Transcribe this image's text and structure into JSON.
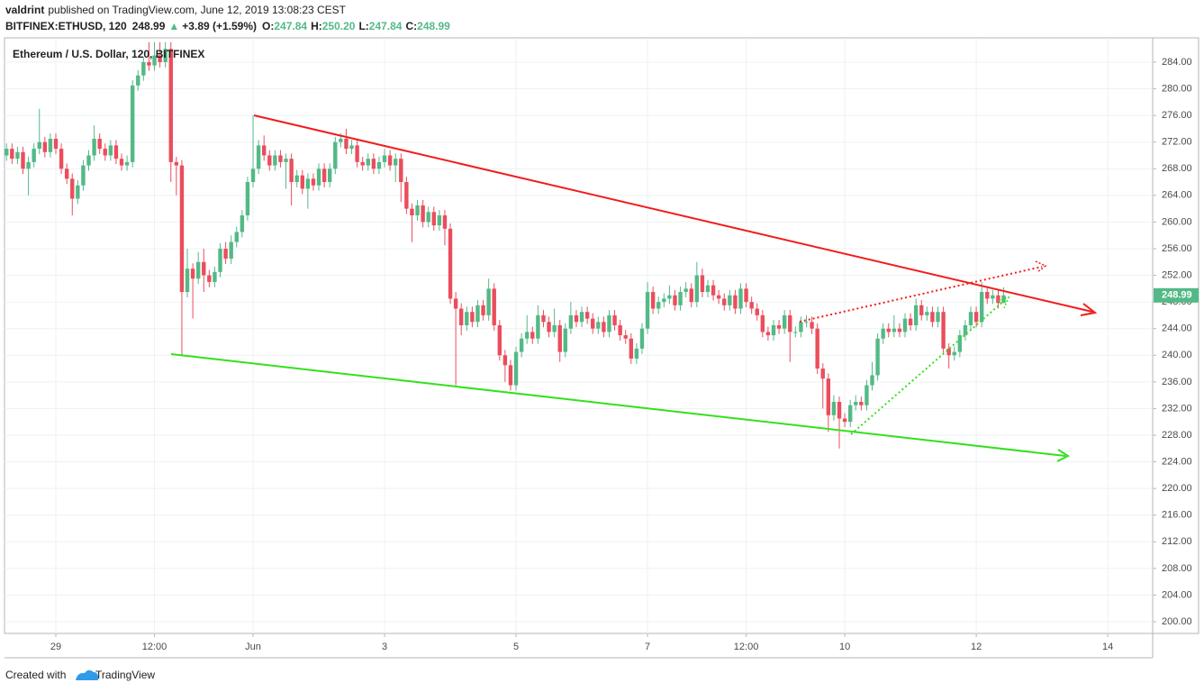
{
  "header": {
    "author": "valdrint",
    "published": "published on TradingView.com, June 12, 2019 13:08:23 CEST",
    "symbol": "BITFINEX:ETHUSD, 120",
    "price": "248.99",
    "arrow": "▲",
    "change": "+3.89 (+1.59%)",
    "ohlc": [
      {
        "label": "O:",
        "value": "247.84"
      },
      {
        "label": "H:",
        "value": "250.20"
      },
      {
        "label": "L:",
        "value": "247.84"
      },
      {
        "label": "C:",
        "value": "248.99"
      }
    ]
  },
  "chart_data": {
    "type": "candlestick",
    "title": "Ethereum / U.S. Dollar, 120, BITFINEX",
    "up_color": "#53b987",
    "down_color": "#eb4d5c",
    "grid": true,
    "xlim": [
      -9.37,
      200.2
    ],
    "ylim": [
      198.24,
      287.65
    ],
    "xticks": [
      {
        "value": 0,
        "label": "29"
      },
      {
        "value": 18,
        "label": "12:00"
      },
      {
        "value": 36,
        "label": "Jun"
      },
      {
        "value": 60,
        "label": "3"
      },
      {
        "value": 84,
        "label": "5"
      },
      {
        "value": 108,
        "label": "7"
      },
      {
        "value": 126,
        "label": "12:00"
      },
      {
        "value": 144,
        "label": "10"
      },
      {
        "value": 168,
        "label": "12"
      },
      {
        "value": 192,
        "label": "14"
      }
    ],
    "yticks": [
      {
        "value": 200,
        "label": "200.00"
      },
      {
        "value": 204,
        "label": "204.00"
      },
      {
        "value": 208,
        "label": "208.00"
      },
      {
        "value": 212,
        "label": "212.00"
      },
      {
        "value": 216,
        "label": "216.00"
      },
      {
        "value": 220,
        "label": "220.00"
      },
      {
        "value": 224,
        "label": "224.00"
      },
      {
        "value": 228,
        "label": "228.00"
      },
      {
        "value": 232,
        "label": "232.00"
      },
      {
        "value": 236,
        "label": "236.00"
      },
      {
        "value": 240,
        "label": "240.00"
      },
      {
        "value": 244,
        "label": "244.00"
      },
      {
        "value": 248,
        "label": "248.00"
      },
      {
        "value": 252,
        "label": "252.00"
      },
      {
        "value": 256,
        "label": "256.00"
      },
      {
        "value": 260,
        "label": "260.00"
      },
      {
        "value": 264,
        "label": "264.00"
      },
      {
        "value": 268,
        "label": "268.00"
      },
      {
        "value": 272,
        "label": "272.00"
      },
      {
        "value": 276,
        "label": "276.00"
      },
      {
        "value": 280,
        "label": "280.00"
      },
      {
        "value": 284,
        "label": "284.00"
      }
    ],
    "last_price": 248.99,
    "candles": [
      [
        -9,
        270,
        271.8,
        269.2,
        271
      ],
      [
        -8,
        271,
        271.8,
        268.7,
        269.5
      ],
      [
        -7,
        269.5,
        271.3,
        268.7,
        270.5
      ],
      [
        -6,
        270.5,
        271.3,
        267.2,
        268
      ],
      [
        -5,
        268,
        269.8,
        264,
        269
      ],
      [
        -4,
        269,
        271.8,
        268.2,
        271
      ],
      [
        -3,
        271,
        277,
        270.2,
        272
      ],
      [
        -2,
        272,
        272.8,
        269.7,
        270.5
      ],
      [
        -1,
        270.5,
        273.3,
        269.7,
        272.5
      ],
      [
        0,
        272.5,
        273.3,
        270.2,
        271
      ],
      [
        1,
        271,
        271.8,
        267.2,
        268
      ],
      [
        2,
        268,
        268.8,
        265.7,
        266.5
      ],
      [
        3,
        266.5,
        267.3,
        261,
        263.5
      ],
      [
        4,
        263.5,
        266.3,
        262.7,
        265.5
      ],
      [
        5,
        265.5,
        269.3,
        264.7,
        268.5
      ],
      [
        6,
        268.5,
        270.8,
        267.7,
        270
      ],
      [
        7,
        270,
        274.5,
        269.2,
        272.5
      ],
      [
        8,
        272.5,
        273.3,
        270.2,
        271
      ],
      [
        9,
        271,
        271.8,
        269.2,
        270
      ],
      [
        10,
        270,
        272.3,
        269.2,
        271.5
      ],
      [
        11,
        271.5,
        272.3,
        268.7,
        269.5
      ],
      [
        12,
        269.5,
        270.3,
        267.7,
        268.5
      ],
      [
        13,
        268.5,
        270,
        267.7,
        269
      ],
      [
        14,
        269,
        281.3,
        268.2,
        280.5
      ],
      [
        15,
        280.5,
        282.8,
        279.7,
        282
      ],
      [
        16,
        282,
        284.8,
        281.2,
        284
      ],
      [
        17,
        284,
        287,
        282.7,
        283.5
      ],
      [
        18,
        283.5,
        287,
        282.7,
        285
      ],
      [
        19,
        285,
        287,
        283.2,
        284
      ],
      [
        20,
        284,
        287,
        283.2,
        286
      ],
      [
        21,
        286,
        287,
        266,
        269
      ],
      [
        22,
        269,
        269.8,
        264,
        268.5
      ],
      [
        23,
        268.5,
        269.3,
        240,
        249.5
      ],
      [
        24,
        249.5,
        256,
        248.7,
        253
      ],
      [
        25,
        253,
        253.8,
        245.5,
        251.5
      ],
      [
        26,
        251.5,
        255.5,
        250.7,
        254
      ],
      [
        27,
        254,
        256,
        249.5,
        252
      ],
      [
        28,
        252,
        252.8,
        250.2,
        251
      ],
      [
        29,
        251,
        253.3,
        250.2,
        252.5
      ],
      [
        30,
        252.5,
        256.8,
        251.7,
        256
      ],
      [
        31,
        256,
        257,
        253.7,
        254.5
      ],
      [
        32,
        254.5,
        258,
        253.7,
        257
      ],
      [
        33,
        257,
        259.3,
        256.2,
        258.5
      ],
      [
        34,
        258.5,
        261.8,
        257.7,
        261
      ],
      [
        35,
        261,
        266.8,
        260.2,
        266
      ],
      [
        36,
        266,
        276,
        265.2,
        268
      ],
      [
        37,
        268,
        272.3,
        267.2,
        271.5
      ],
      [
        38,
        271.5,
        273,
        269.2,
        270
      ],
      [
        39,
        270,
        270.8,
        267.7,
        268.5
      ],
      [
        40,
        268.5,
        270.8,
        267.7,
        270
      ],
      [
        41,
        270,
        270.8,
        268.2,
        269
      ],
      [
        42,
        269,
        270.3,
        265,
        269.5
      ],
      [
        43,
        269.5,
        270.3,
        262.5,
        266
      ],
      [
        44,
        266,
        267.8,
        265.2,
        267
      ],
      [
        45,
        267,
        267.8,
        264.2,
        265
      ],
      [
        46,
        265,
        267.3,
        262,
        266.5
      ],
      [
        47,
        266.5,
        267.3,
        264.7,
        265.5
      ],
      [
        48,
        265.5,
        268.8,
        264.7,
        268
      ],
      [
        49,
        268,
        268.8,
        265.2,
        266
      ],
      [
        50,
        266,
        268.8,
        265.2,
        268
      ],
      [
        51,
        268,
        272.8,
        267.2,
        272
      ],
      [
        52,
        272,
        273.3,
        271.2,
        272.5
      ],
      [
        53,
        272.5,
        274,
        270.2,
        271
      ],
      [
        54,
        271,
        272.3,
        270.2,
        271.5
      ],
      [
        55,
        271.5,
        272.3,
        268.2,
        269
      ],
      [
        56,
        269,
        269.8,
        267.7,
        268.5
      ],
      [
        57,
        268.5,
        270.3,
        267.7,
        269.5
      ],
      [
        58,
        269.5,
        270.3,
        267.2,
        268
      ],
      [
        59,
        268,
        269.8,
        267.2,
        269
      ],
      [
        60,
        269,
        271,
        268.2,
        270
      ],
      [
        61,
        270,
        270.8,
        267.7,
        268.5
      ],
      [
        62,
        268.5,
        270.3,
        266,
        269.5
      ],
      [
        63,
        269.5,
        270.3,
        263,
        266
      ],
      [
        64,
        266,
        266.8,
        261.2,
        262
      ],
      [
        65,
        262,
        262.8,
        257,
        261
      ],
      [
        66,
        261,
        263.3,
        260.2,
        262.5
      ],
      [
        67,
        262.5,
        263.3,
        259.2,
        260
      ],
      [
        68,
        260,
        262.3,
        259.2,
        261.5
      ],
      [
        69,
        261.5,
        262.3,
        258.7,
        259.5
      ],
      [
        70,
        259.5,
        261.8,
        258.7,
        261
      ],
      [
        71,
        261,
        261.8,
        256.5,
        259
      ],
      [
        72,
        259,
        259.8,
        247.7,
        248.5
      ],
      [
        73,
        248.5,
        249.5,
        235.5,
        247
      ],
      [
        74,
        247,
        247.8,
        243,
        244.5
      ],
      [
        75,
        244.5,
        247.3,
        243.7,
        246.5
      ],
      [
        76,
        246.5,
        247.3,
        244.2,
        245
      ],
      [
        77,
        245,
        248.3,
        244.2,
        247.5
      ],
      [
        78,
        247.5,
        248.3,
        245.2,
        246
      ],
      [
        79,
        246,
        251.5,
        245.2,
        250
      ],
      [
        80,
        250,
        250.8,
        243.7,
        244.5
      ],
      [
        81,
        244.5,
        245.3,
        239.2,
        240
      ],
      [
        82,
        240,
        240.8,
        236,
        238.5
      ],
      [
        83,
        238.5,
        239.3,
        234.7,
        235.5
      ],
      [
        84,
        235.5,
        241.3,
        234.7,
        240.5
      ],
      [
        85,
        240.5,
        243.3,
        239.7,
        242.5
      ],
      [
        86,
        242.5,
        246,
        241.7,
        243.5
      ],
      [
        87,
        243.5,
        244.3,
        241.7,
        242.5
      ],
      [
        88,
        242.5,
        247.5,
        241.7,
        246
      ],
      [
        89,
        246,
        246.8,
        244.2,
        245
      ],
      [
        90,
        245,
        245.8,
        242.7,
        243.5
      ],
      [
        91,
        243.5,
        247,
        242.7,
        244.5
      ],
      [
        92,
        244.5,
        245.3,
        239,
        240.5
      ],
      [
        93,
        240.5,
        244.8,
        239.7,
        244
      ],
      [
        94,
        244,
        248,
        243.2,
        246
      ],
      [
        95,
        246,
        246.8,
        244.2,
        245
      ],
      [
        96,
        245,
        247.3,
        244.2,
        246.5
      ],
      [
        97,
        246.5,
        247.3,
        244.7,
        245.5
      ],
      [
        98,
        245.5,
        246.3,
        243.2,
        244
      ],
      [
        99,
        244,
        245.8,
        243.2,
        245
      ],
      [
        100,
        245,
        245.8,
        242.7,
        243.5
      ],
      [
        101,
        243.5,
        246.8,
        242.7,
        246
      ],
      [
        102,
        246,
        246.8,
        243.7,
        244.5
      ],
      [
        103,
        244.5,
        245.3,
        242.2,
        243
      ],
      [
        104,
        243,
        243.8,
        241.7,
        242.5
      ],
      [
        105,
        242.5,
        243.3,
        238.7,
        239.5
      ],
      [
        106,
        239.5,
        241.8,
        238.7,
        241
      ],
      [
        107,
        241,
        244.8,
        240.2,
        244
      ],
      [
        108,
        244,
        251,
        243.2,
        249.5
      ],
      [
        109,
        249.5,
        250.3,
        246.2,
        247
      ],
      [
        110,
        247,
        248.8,
        246.2,
        248
      ],
      [
        111,
        248,
        249.3,
        247.2,
        248.5
      ],
      [
        112,
        248.5,
        250.5,
        247.7,
        249
      ],
      [
        113,
        249,
        249.8,
        246.7,
        247.5
      ],
      [
        114,
        247.5,
        250.3,
        246.7,
        249.5
      ],
      [
        115,
        249.5,
        251,
        248.7,
        250
      ],
      [
        116,
        250,
        250.8,
        247.2,
        248
      ],
      [
        117,
        248,
        254,
        247.2,
        252
      ],
      [
        118,
        252,
        253,
        248.7,
        249.5
      ],
      [
        119,
        249.5,
        251.3,
        248.7,
        250.5
      ],
      [
        120,
        250.5,
        251.3,
        248.2,
        249
      ],
      [
        121,
        249,
        249.8,
        247.7,
        248.5
      ],
      [
        122,
        248.5,
        249.3,
        246.7,
        247.5
      ],
      [
        123,
        247.5,
        249.8,
        246.7,
        249
      ],
      [
        124,
        249,
        249.8,
        246.2,
        247
      ],
      [
        125,
        247,
        250.8,
        246.2,
        250
      ],
      [
        126,
        250,
        250.8,
        247.2,
        248
      ],
      [
        127,
        248,
        248.8,
        246.2,
        247
      ],
      [
        128,
        247,
        247.8,
        245.2,
        246
      ],
      [
        129,
        246,
        246.8,
        242.7,
        243.5
      ],
      [
        130,
        243.5,
        244.3,
        242.2,
        243
      ],
      [
        131,
        243,
        245.3,
        242.2,
        244.5
      ],
      [
        132,
        244.5,
        245.3,
        243.2,
        244
      ],
      [
        133,
        244,
        246.8,
        243.2,
        246
      ],
      [
        134,
        246,
        246.8,
        239,
        243.5
      ],
      [
        135,
        243.5,
        244.3,
        242.7,
        243.5
      ],
      [
        136,
        243.5,
        245.8,
        242.7,
        245
      ],
      [
        137,
        245,
        246,
        244.2,
        245
      ],
      [
        138,
        245,
        245.8,
        243.2,
        244
      ],
      [
        139,
        244,
        244.8,
        237.2,
        238
      ],
      [
        140,
        238,
        238.8,
        232,
        236.5
      ],
      [
        141,
        236.5,
        237.3,
        228.5,
        231
      ],
      [
        142,
        231,
        234,
        230.2,
        233
      ],
      [
        143,
        233,
        233.8,
        226,
        230.5
      ],
      [
        144,
        230.5,
        231.3,
        229.2,
        230
      ],
      [
        145,
        230,
        233.3,
        229.2,
        232.5
      ],
      [
        146,
        232.5,
        234,
        231.7,
        233
      ],
      [
        147,
        233,
        233.8,
        231.7,
        232.5
      ],
      [
        148,
        232.5,
        236.3,
        231.7,
        235.5
      ],
      [
        149,
        235.5,
        239,
        234.7,
        237
      ],
      [
        150,
        237,
        243.3,
        236.2,
        242.5
      ],
      [
        151,
        242.5,
        244.8,
        241.7,
        244
      ],
      [
        152,
        244,
        244.8,
        242.7,
        243.5
      ],
      [
        153,
        243.5,
        246,
        242.7,
        244
      ],
      [
        154,
        244,
        244.8,
        242.7,
        243.5
      ],
      [
        155,
        243.5,
        246.3,
        242.7,
        245.5
      ],
      [
        156,
        245.5,
        246.3,
        243.7,
        244.5
      ],
      [
        157,
        244.5,
        248.5,
        243.7,
        247.5
      ],
      [
        158,
        247.5,
        248.3,
        245.2,
        246
      ],
      [
        159,
        246,
        247.3,
        245.2,
        246.5
      ],
      [
        160,
        246.5,
        247.3,
        244.2,
        245
      ],
      [
        161,
        245,
        247.3,
        244.2,
        246.5
      ],
      [
        162,
        246.5,
        247.3,
        240.2,
        241
      ],
      [
        163,
        241,
        241.8,
        238,
        240
      ],
      [
        164,
        240,
        241.3,
        239.2,
        240.5
      ],
      [
        165,
        240.5,
        243.8,
        239.7,
        243
      ],
      [
        166,
        243,
        245.3,
        242.2,
        244.5
      ],
      [
        167,
        244.5,
        247.3,
        243.7,
        246.5
      ],
      [
        168,
        246.5,
        247.3,
        244.2,
        245
      ],
      [
        169,
        245,
        251,
        244.2,
        249.5
      ],
      [
        170,
        249.5,
        250.3,
        247.7,
        248.5
      ],
      [
        171,
        248.5,
        249.8,
        247.7,
        249
      ],
      [
        172,
        249,
        249.8,
        247,
        247.84
      ],
      [
        173,
        247.84,
        250.2,
        247.84,
        248.99
      ]
    ]
  },
  "footer": {
    "text": "Created with",
    "brand": "TradingView"
  }
}
